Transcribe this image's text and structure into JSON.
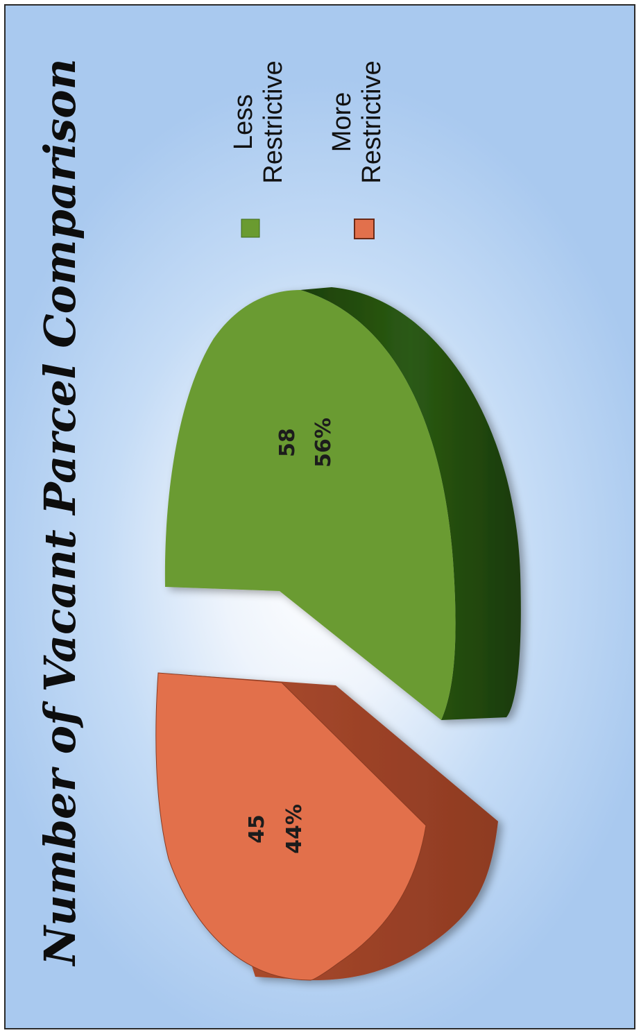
{
  "chart_data": {
    "type": "pie",
    "title": "Number of Vacant Parcel Comparison",
    "categories": [
      "Less Restrictive",
      "More Restrictive"
    ],
    "values": [
      58,
      45
    ],
    "percent_labels": [
      "56%",
      "44%"
    ],
    "legend_entries": [
      {
        "name_line1": "Less",
        "name_line2": "Restrictive",
        "color": "#6a9b30"
      },
      {
        "name_line1": "More",
        "name_line2": "Restrictive",
        "color": "#e2704c"
      }
    ],
    "legend_placement": "right",
    "style": "3d-exploded",
    "orientation": "rotated-90-clockwise"
  },
  "colors": {
    "less_top": "#6a9b30",
    "less_side": "#244d0f",
    "more_top": "#e2704c",
    "more_side": "#a2452a",
    "background_center": "#ffffff",
    "background_edge": "#a9c9ef"
  }
}
